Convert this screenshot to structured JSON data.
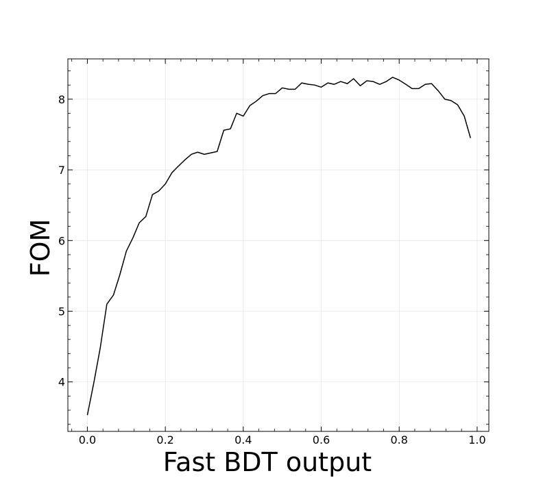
{
  "chart_data": {
    "type": "line",
    "title": "",
    "xlabel": "Fast BDT output",
    "ylabel": "FOM",
    "xlim": [
      -0.05,
      1.03
    ],
    "ylim": [
      3.3,
      8.57
    ],
    "xticks": [
      0.0,
      0.2,
      0.4,
      0.6,
      0.8,
      1.0
    ],
    "xtick_labels": [
      "0.0",
      "0.2",
      "0.4",
      "0.6",
      "0.8",
      "1.0"
    ],
    "yticks": [
      4,
      5,
      6,
      7,
      8
    ],
    "ytick_labels": [
      "4",
      "5",
      "6",
      "7",
      "8"
    ],
    "grid": true,
    "legend": "none",
    "series": [
      {
        "color": "#000000",
        "x": [
          0.0,
          0.017,
          0.033,
          0.05,
          0.067,
          0.083,
          0.1,
          0.117,
          0.133,
          0.15,
          0.167,
          0.183,
          0.2,
          0.217,
          0.233,
          0.25,
          0.267,
          0.283,
          0.3,
          0.317,
          0.333,
          0.35,
          0.367,
          0.383,
          0.4,
          0.417,
          0.433,
          0.45,
          0.467,
          0.483,
          0.5,
          0.517,
          0.533,
          0.55,
          0.567,
          0.583,
          0.6,
          0.617,
          0.633,
          0.65,
          0.667,
          0.683,
          0.7,
          0.717,
          0.733,
          0.75,
          0.767,
          0.783,
          0.8,
          0.817,
          0.833,
          0.85,
          0.867,
          0.883,
          0.9,
          0.917,
          0.933,
          0.95,
          0.967,
          0.983
        ],
        "y": [
          3.53,
          4.0,
          4.48,
          5.1,
          5.23,
          5.51,
          5.85,
          6.04,
          6.25,
          6.34,
          6.65,
          6.7,
          6.8,
          6.96,
          7.05,
          7.14,
          7.22,
          7.25,
          7.22,
          7.24,
          7.26,
          7.56,
          7.58,
          7.8,
          7.76,
          7.91,
          7.97,
          8.05,
          8.08,
          8.08,
          8.16,
          8.14,
          8.14,
          8.23,
          8.21,
          8.2,
          8.17,
          8.23,
          8.21,
          8.25,
          8.22,
          8.29,
          8.19,
          8.26,
          8.25,
          8.21,
          8.25,
          8.31,
          8.27,
          8.21,
          8.15,
          8.15,
          8.21,
          8.22,
          8.12,
          8.0,
          7.98,
          7.92,
          7.76,
          7.45
        ]
      }
    ]
  }
}
